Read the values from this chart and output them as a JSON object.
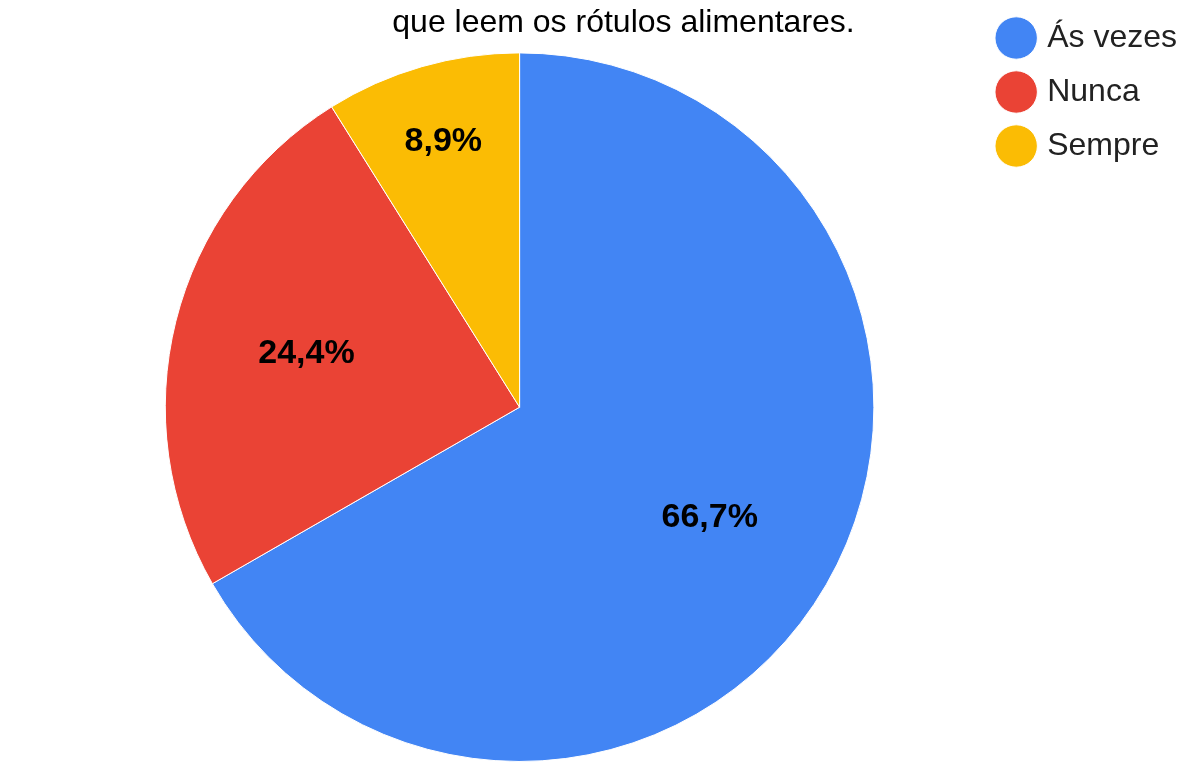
{
  "chart_data": {
    "type": "pie",
    "title": "que leem os rótulos alimentares.",
    "categories": [
      "Ás vezes",
      "Nunca",
      "Sempre"
    ],
    "values": [
      66.7,
      24.4,
      8.9
    ],
    "colors": [
      "#4285f4",
      "#ea4335",
      "#fbbc04"
    ],
    "value_labels": [
      "66,7%",
      "24,4%",
      "8,9%"
    ],
    "legend": "top right"
  }
}
